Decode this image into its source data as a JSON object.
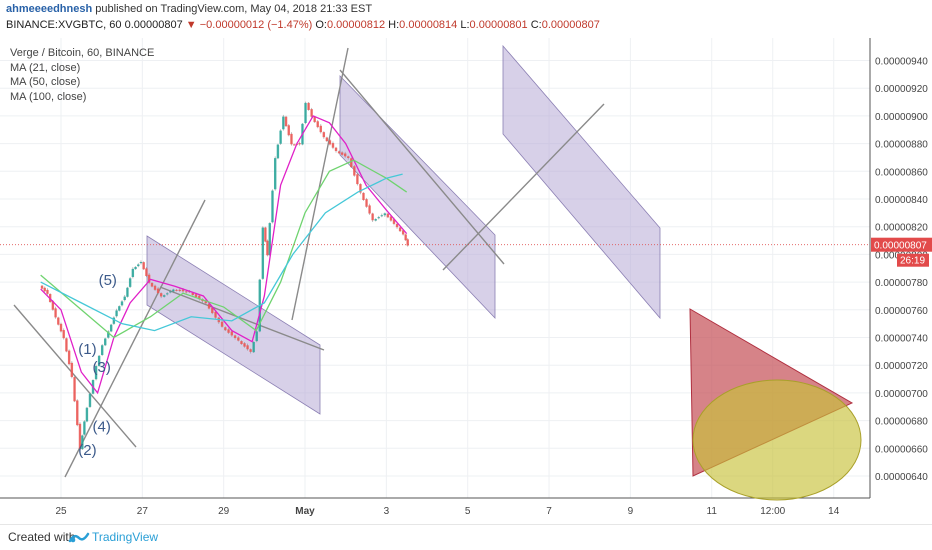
{
  "header": {
    "author": "ahmeeeedhnesh",
    "published_text": "published on TradingView.com, May 04, 2018 21:33 EST",
    "symbol": "BINANCE:XVGBTC, 60",
    "last": "0.00000807",
    "change_arrow": "▼",
    "change": "−0.00000012 (−1.47%)",
    "ohlc": [
      {
        "label": "O:",
        "value": "0.00000812"
      },
      {
        "label": "H:",
        "value": "0.00000814"
      },
      {
        "label": "L:",
        "value": "0.00000801"
      },
      {
        "label": "C:",
        "value": "0.00000807"
      }
    ]
  },
  "legend": [
    "Verge / Bitcoin, 60, BINANCE",
    "MA (21, close)",
    "MA (50, close)",
    "MA (100, close)"
  ],
  "footer": {
    "created": "Created with",
    "brand": "TradingView"
  },
  "colors": {
    "up": "#26a69a",
    "down": "#ef5350",
    "candle_neutral": "#8a8a8a",
    "ma21": "#e020c8",
    "ma50": "#6fd36f",
    "ma100": "#45c8d8",
    "channel_fill": "#b7a9d6",
    "price_line": "#e05555",
    "triangle": "#c44f55",
    "ellipse": "#c7c23a"
  },
  "chart_data": {
    "type": "line",
    "title": "Verge / Bitcoin, 60, BINANCE",
    "x_tick_labels": [
      "25",
      "27",
      "29",
      "May",
      "3",
      "5",
      "7",
      "9",
      "11",
      "12:00",
      "14"
    ],
    "y_tick_labels": [
      "0.00000940",
      "0.00000920",
      "0.00000900",
      "0.00000880",
      "0.00000860",
      "0.00000840",
      "0.00000820",
      "0.00000800",
      "0.00000780",
      "0.00000760",
      "0.00000740",
      "0.00000720",
      "0.00000700",
      "0.00000680",
      "0.00000660",
      "0.00000640"
    ],
    "y_range": [
      6.3e-06,
      9.5e-06
    ],
    "last_price": "0.00000807",
    "countdown": "26:19",
    "grid": true,
    "series": [
      {
        "name": "Verge / Bitcoin",
        "close": [
          [
            -0.5,
            7.78e-06
          ],
          [
            -0.3,
            7.72e-06
          ],
          [
            -0.1,
            7.55e-06
          ],
          [
            0.1,
            7.4e-06
          ],
          [
            0.3,
            7.12e-06
          ],
          [
            0.5,
            6.6e-06
          ],
          [
            0.6,
            6.8e-06
          ],
          [
            0.75,
            7e-06
          ],
          [
            0.9,
            7.2e-06
          ],
          [
            1.05,
            7.35e-06
          ],
          [
            1.2,
            7.45e-06
          ],
          [
            1.4,
            7.6e-06
          ],
          [
            1.6,
            7.7e-06
          ],
          [
            1.8,
            7.9e-06
          ],
          [
            2.0,
            7.95e-06
          ],
          [
            2.2,
            7.8e-06
          ],
          [
            2.5,
            7.7e-06
          ],
          [
            2.8,
            7.75e-06
          ],
          [
            3.2,
            7.73e-06
          ],
          [
            3.6,
            7.65e-06
          ],
          [
            4.0,
            7.48e-06
          ],
          [
            4.4,
            7.38e-06
          ],
          [
            4.7,
            7.3e-06
          ],
          [
            4.85,
            7.45e-06
          ],
          [
            5.0,
            8.2e-06
          ],
          [
            5.1,
            8e-06
          ],
          [
            5.3,
            8.7e-06
          ],
          [
            5.5,
            9e-06
          ],
          [
            5.7,
            8.8e-06
          ],
          [
            5.9,
            8.8e-06
          ],
          [
            6.05,
            9.1e-06
          ],
          [
            6.2,
            9e-06
          ],
          [
            6.5,
            8.85e-06
          ],
          [
            6.8,
            8.75e-06
          ],
          [
            7.1,
            8.7e-06
          ],
          [
            7.4,
            8.45e-06
          ],
          [
            7.7,
            8.25e-06
          ],
          [
            8.0,
            8.3e-06
          ],
          [
            8.3,
            8.2e-06
          ],
          [
            8.45,
            8.15e-06
          ],
          [
            8.55,
            8.07e-06
          ]
        ]
      },
      {
        "name": "MA (21, close)",
        "values": [
          [
            -0.5,
            7.75e-06
          ],
          [
            0,
            7.6e-06
          ],
          [
            0.5,
            7.15e-06
          ],
          [
            0.9,
            7e-06
          ],
          [
            1.3,
            7.4e-06
          ],
          [
            1.7,
            7.65e-06
          ],
          [
            2.2,
            7.82e-06
          ],
          [
            2.8,
            7.77e-06
          ],
          [
            3.5,
            7.7e-06
          ],
          [
            4.2,
            7.45e-06
          ],
          [
            4.7,
            7.37e-06
          ],
          [
            5.0,
            7.7e-06
          ],
          [
            5.4,
            8.5e-06
          ],
          [
            5.8,
            8.8e-06
          ],
          [
            6.2,
            9e-06
          ],
          [
            6.6,
            8.95e-06
          ],
          [
            7.0,
            8.8e-06
          ],
          [
            7.5,
            8.5e-06
          ],
          [
            8.0,
            8.32e-06
          ],
          [
            8.5,
            8.15e-06
          ]
        ]
      },
      {
        "name": "MA (50, close)",
        "values": [
          [
            -0.5,
            7.85e-06
          ],
          [
            0.5,
            7.6e-06
          ],
          [
            1.3,
            7.4e-06
          ],
          [
            2.2,
            7.55e-06
          ],
          [
            3.0,
            7.72e-06
          ],
          [
            4.0,
            7.62e-06
          ],
          [
            4.8,
            7.45e-06
          ],
          [
            5.4,
            7.8e-06
          ],
          [
            6.0,
            8.3e-06
          ],
          [
            6.6,
            8.6e-06
          ],
          [
            7.2,
            8.68e-06
          ],
          [
            8.0,
            8.55e-06
          ],
          [
            8.5,
            8.45e-06
          ]
        ]
      },
      {
        "name": "MA (100, close)",
        "values": [
          [
            -0.5,
            7.8e-06
          ],
          [
            0.5,
            7.65e-06
          ],
          [
            1.5,
            7.5e-06
          ],
          [
            2.3,
            7.45e-06
          ],
          [
            3.2,
            7.55e-06
          ],
          [
            4.2,
            7.52e-06
          ],
          [
            5.0,
            7.65e-06
          ],
          [
            5.7,
            8e-06
          ],
          [
            6.5,
            8.3e-06
          ],
          [
            7.3,
            8.45e-06
          ],
          [
            8.0,
            8.55e-06
          ],
          [
            8.4,
            8.58e-06
          ]
        ]
      }
    ],
    "annotations": [
      {
        "label": "(1)",
        "x": 0.65,
        "y": 7.28e-06
      },
      {
        "label": "(2)",
        "x": 0.65,
        "y": 6.55e-06
      },
      {
        "label": "(3)",
        "x": 1.0,
        "y": 7.15e-06
      },
      {
        "label": "(4)",
        "x": 1.0,
        "y": 6.72e-06
      },
      {
        "label": "(5)",
        "x": 1.15,
        "y": 7.78e-06
      }
    ]
  }
}
